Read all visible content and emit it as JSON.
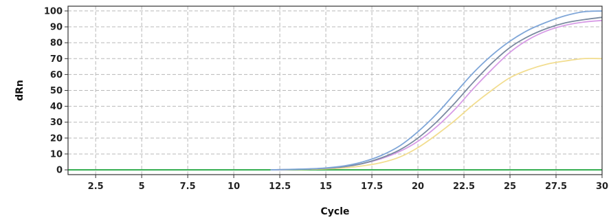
{
  "chart_data": {
    "type": "line",
    "title": "",
    "xlabel": "Cycle",
    "ylabel": "dRn",
    "xlim": [
      1,
      30
    ],
    "ylim": [
      -3,
      103
    ],
    "x_ticks": [
      "2.5",
      "5",
      "7.5",
      "10",
      "12.5",
      "15",
      "17.5",
      "20",
      "22.5",
      "25",
      "27.5",
      "30"
    ],
    "y_ticks": [
      "0",
      "10",
      "20",
      "30",
      "40",
      "50",
      "60",
      "70",
      "80",
      "90",
      "100"
    ],
    "grid": true,
    "legend": "none",
    "baseline": {
      "y": 0,
      "color": "#27a844"
    },
    "series": [
      {
        "color": "#7fa6d8",
        "x": [
          12,
          13,
          14,
          15,
          16,
          17,
          18,
          19,
          20,
          21,
          22,
          23,
          24,
          25,
          26,
          27,
          28,
          29,
          30
        ],
        "y": [
          0,
          0.3,
          0.6,
          1.2,
          2.5,
          5,
          9,
          15,
          24,
          35,
          48,
          61,
          72,
          81,
          88,
          93,
          97,
          99.5,
          100
        ]
      },
      {
        "color": "#7a8aa0",
        "x": [
          12,
          13,
          14,
          15,
          16,
          17,
          18,
          19,
          20,
          21,
          22,
          23,
          24,
          25,
          26,
          27,
          28,
          29,
          30
        ],
        "y": [
          0,
          0.2,
          0.5,
          1,
          2,
          4,
          7.5,
          12.5,
          20,
          30,
          42,
          55,
          67,
          77,
          84,
          89,
          92.5,
          94.5,
          96
        ]
      },
      {
        "color": "#d79be6",
        "x": [
          12,
          13,
          14,
          15,
          16,
          17,
          18,
          19,
          20,
          21,
          22,
          23,
          24,
          25,
          26,
          27,
          28,
          29,
          30
        ],
        "y": [
          0,
          0.2,
          0.5,
          1,
          2,
          4,
          7,
          11.5,
          18,
          27,
          38,
          51,
          63,
          74,
          82,
          87.5,
          91,
          93,
          94
        ]
      },
      {
        "color": "#f2dd8f",
        "x": [
          12,
          13,
          14,
          15,
          16,
          17,
          18,
          19,
          20,
          21,
          22,
          23,
          24,
          25,
          26,
          27,
          28,
          29,
          30
        ],
        "y": [
          0,
          0.1,
          0.3,
          0.6,
          1.2,
          2.5,
          4.5,
          8,
          14,
          22,
          31,
          41,
          50,
          58,
          63,
          66.5,
          68.5,
          70,
          70
        ]
      }
    ]
  }
}
